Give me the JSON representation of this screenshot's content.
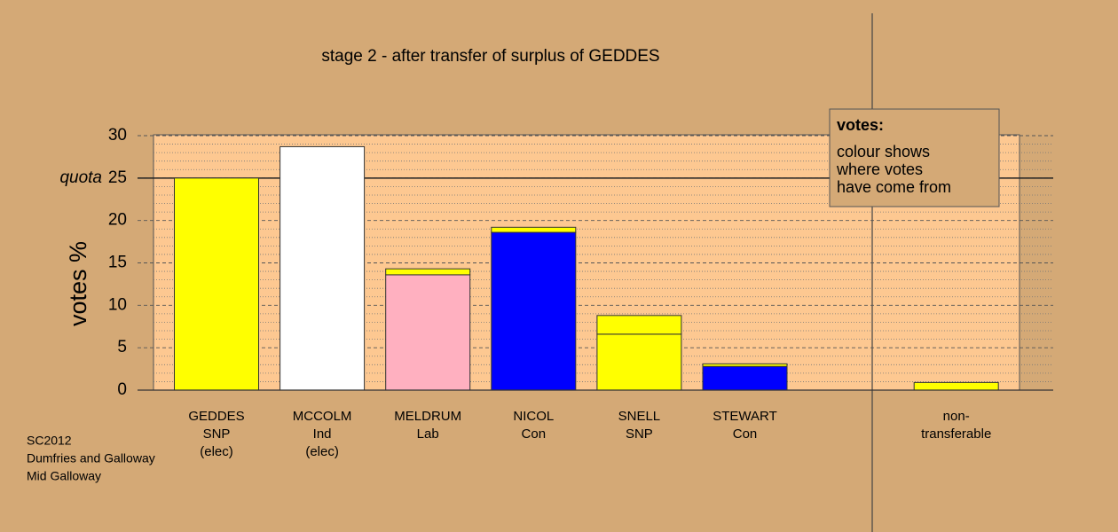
{
  "chart_data": {
    "type": "bar",
    "title": "stage 2 - after transfer of surplus of GEDDES",
    "ylabel": "votes %",
    "categories": [
      [
        "GEDDES",
        "SNP",
        "(elec)"
      ],
      [
        "MCCOLM",
        "Ind",
        "(elec)"
      ],
      [
        "MELDRUM",
        "Lab"
      ],
      [
        "NICOL",
        "Con"
      ],
      [
        "SNELL",
        "SNP"
      ],
      [
        "STEWART",
        "Con"
      ],
      null,
      [
        "non-",
        "transferable"
      ]
    ],
    "series": [
      {
        "colors": [
          "#ffff00",
          "#ffffff",
          "#ffb0c0",
          "#0000ff",
          "#ffff00",
          "#0000ff",
          null,
          "#ffff00"
        ],
        "values": [
          25,
          28.7,
          13.6,
          18.6,
          6.6,
          2.8,
          null,
          0.9
        ]
      },
      {
        "colors": [
          null,
          null,
          "#ffff00",
          "#ffff00",
          "#ffff00",
          "#ffff00",
          null,
          null
        ],
        "values": [
          null,
          null,
          0.7,
          0.6,
          2.2,
          0.3,
          null,
          null
        ]
      }
    ],
    "ylim": [
      0,
      30
    ],
    "yticks": [
      0,
      5,
      10,
      15,
      20,
      25,
      30
    ],
    "minor_yticks": [
      1,
      2,
      3,
      4,
      6,
      7,
      8,
      9,
      11,
      12,
      13,
      14,
      16,
      17,
      18,
      19,
      21,
      22,
      23,
      24,
      26,
      27,
      28,
      29
    ],
    "grid": true,
    "quota": {
      "value": 25,
      "label": "quota"
    },
    "legend": {
      "title": "votes:",
      "lines": [
        "colour shows",
        "where votes",
        "have come from"
      ]
    },
    "footer": [
      "SC2012",
      "Dumfries and Galloway",
      "Mid Galloway"
    ]
  }
}
